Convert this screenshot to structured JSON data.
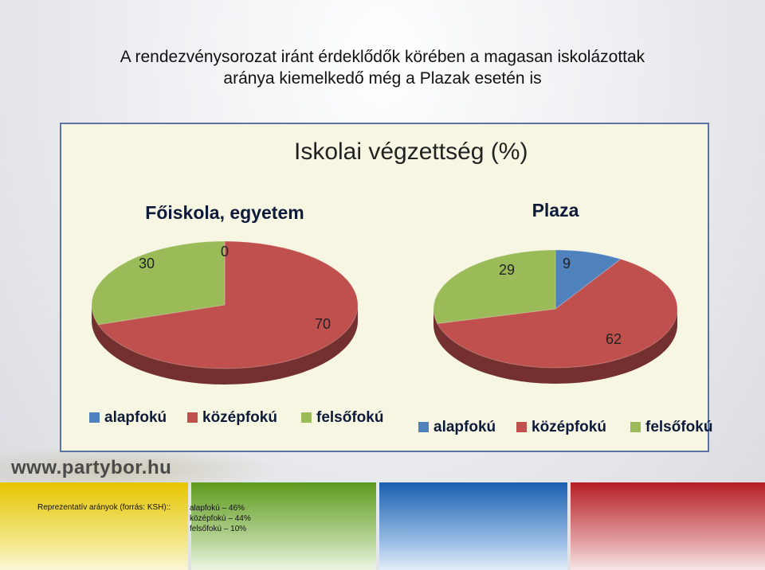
{
  "slide_title": {
    "line1": "A rendezvénysorozat iránt érdeklődők körében a magasan iskolázottak",
    "line2": "aránya kiemelkedő még a Plazak esetén is"
  },
  "panel_title": "Iskolai végzettség (%)",
  "colors": {
    "alapfoku": "#4f81bd",
    "kozepfoku": "#c0504d",
    "felsofoku": "#9bbb59"
  },
  "chart_data": [
    {
      "type": "pie",
      "title": "Főiskola, egyetem",
      "categories": [
        "alapfokú",
        "középfokú",
        "felsőfokú"
      ],
      "values": [
        0,
        70,
        30
      ],
      "legend": "bottom"
    },
    {
      "type": "pie",
      "title": "Plaza",
      "categories": [
        "alapfokú",
        "középfokú",
        "felsőfokú"
      ],
      "values": [
        9,
        62,
        29
      ],
      "legend": "bottom"
    }
  ],
  "footer": {
    "url": "www.partybor.hu",
    "note": "Reprezentatív arányok (forrás: KSH)::",
    "items": [
      "alapfokú – 46%",
      "középfokú – 44%",
      "felsőfokú – 10%"
    ]
  }
}
